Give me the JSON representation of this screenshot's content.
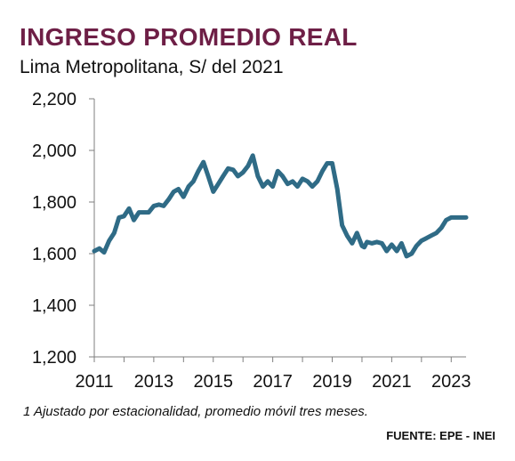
{
  "title": "INGRESO PROMEDIO REAL",
  "subtitle": "Lima Metropolitana, S/ del 2021",
  "footnote": "1 Ajustado por estacionalidad, promedio móvil tres meses.",
  "source": "FUENTE: EPE - INEI",
  "colors": {
    "title": "#6e1f46",
    "line": "#2f6b86"
  },
  "chart_data": {
    "type": "line",
    "title": "INGRESO PROMEDIO REAL",
    "subtitle": "Lima Metropolitana, S/ del 2021",
    "xlabel": "",
    "ylabel": "",
    "xlim": [
      2011,
      2023.5
    ],
    "ylim": [
      1200,
      2200
    ],
    "y_ticks": [
      1200,
      1400,
      1600,
      1800,
      2000,
      2200
    ],
    "y_tick_labels": [
      "1,200",
      "1,400",
      "1,600",
      "1,800",
      "2,000",
      "2,200"
    ],
    "x_ticks": [
      2011,
      2013,
      2015,
      2017,
      2019,
      2021,
      2023
    ],
    "x_tick_labels": [
      "2011",
      "2013",
      "2015",
      "2017",
      "2019",
      "2021",
      "2023"
    ],
    "grid": false,
    "legend": "none",
    "series": [
      {
        "x": [
          2011.0,
          2011.17,
          2011.33,
          2011.5,
          2011.67,
          2011.83,
          2012.0,
          2012.17,
          2012.33,
          2012.5,
          2012.67,
          2012.83,
          2013.0,
          2013.17,
          2013.33,
          2013.5,
          2013.67,
          2013.83,
          2014.0,
          2014.17,
          2014.33,
          2014.5,
          2014.67,
          2014.83,
          2015.0,
          2015.17,
          2015.33,
          2015.5,
          2015.67,
          2015.83,
          2016.0,
          2016.17,
          2016.33,
          2016.5,
          2016.67,
          2016.83,
          2017.0,
          2017.17,
          2017.33,
          2017.5,
          2017.67,
          2017.83,
          2018.0,
          2018.17,
          2018.33,
          2018.5,
          2018.67,
          2018.83,
          2019.0,
          2019.17,
          2019.33,
          2019.5,
          2019.67,
          2019.83,
          2020.0,
          2020.08,
          2020.17,
          2020.33,
          2020.5,
          2020.67,
          2020.83,
          2021.0,
          2021.17,
          2021.33,
          2021.5,
          2021.67,
          2021.83,
          2022.0,
          2022.17,
          2022.33,
          2022.5,
          2022.67,
          2022.83,
          2023.0,
          2023.17,
          2023.33,
          2023.5
        ],
        "values": [
          1610,
          1620,
          1605,
          1650,
          1680,
          1740,
          1745,
          1775,
          1730,
          1760,
          1760,
          1760,
          1785,
          1790,
          1785,
          1810,
          1840,
          1850,
          1820,
          1860,
          1880,
          1920,
          1955,
          1900,
          1840,
          1870,
          1900,
          1930,
          1925,
          1900,
          1915,
          1940,
          1980,
          1900,
          1860,
          1880,
          1860,
          1920,
          1900,
          1870,
          1880,
          1860,
          1890,
          1880,
          1860,
          1880,
          1920,
          1950,
          1950,
          1850,
          1710,
          1670,
          1640,
          1680,
          1630,
          1625,
          1645,
          1640,
          1645,
          1640,
          1610,
          1635,
          1610,
          1640,
          1590,
          1600,
          1630,
          1650,
          1660,
          1670,
          1680,
          1700,
          1730,
          1740,
          1740,
          1740,
          1740
        ]
      }
    ]
  }
}
